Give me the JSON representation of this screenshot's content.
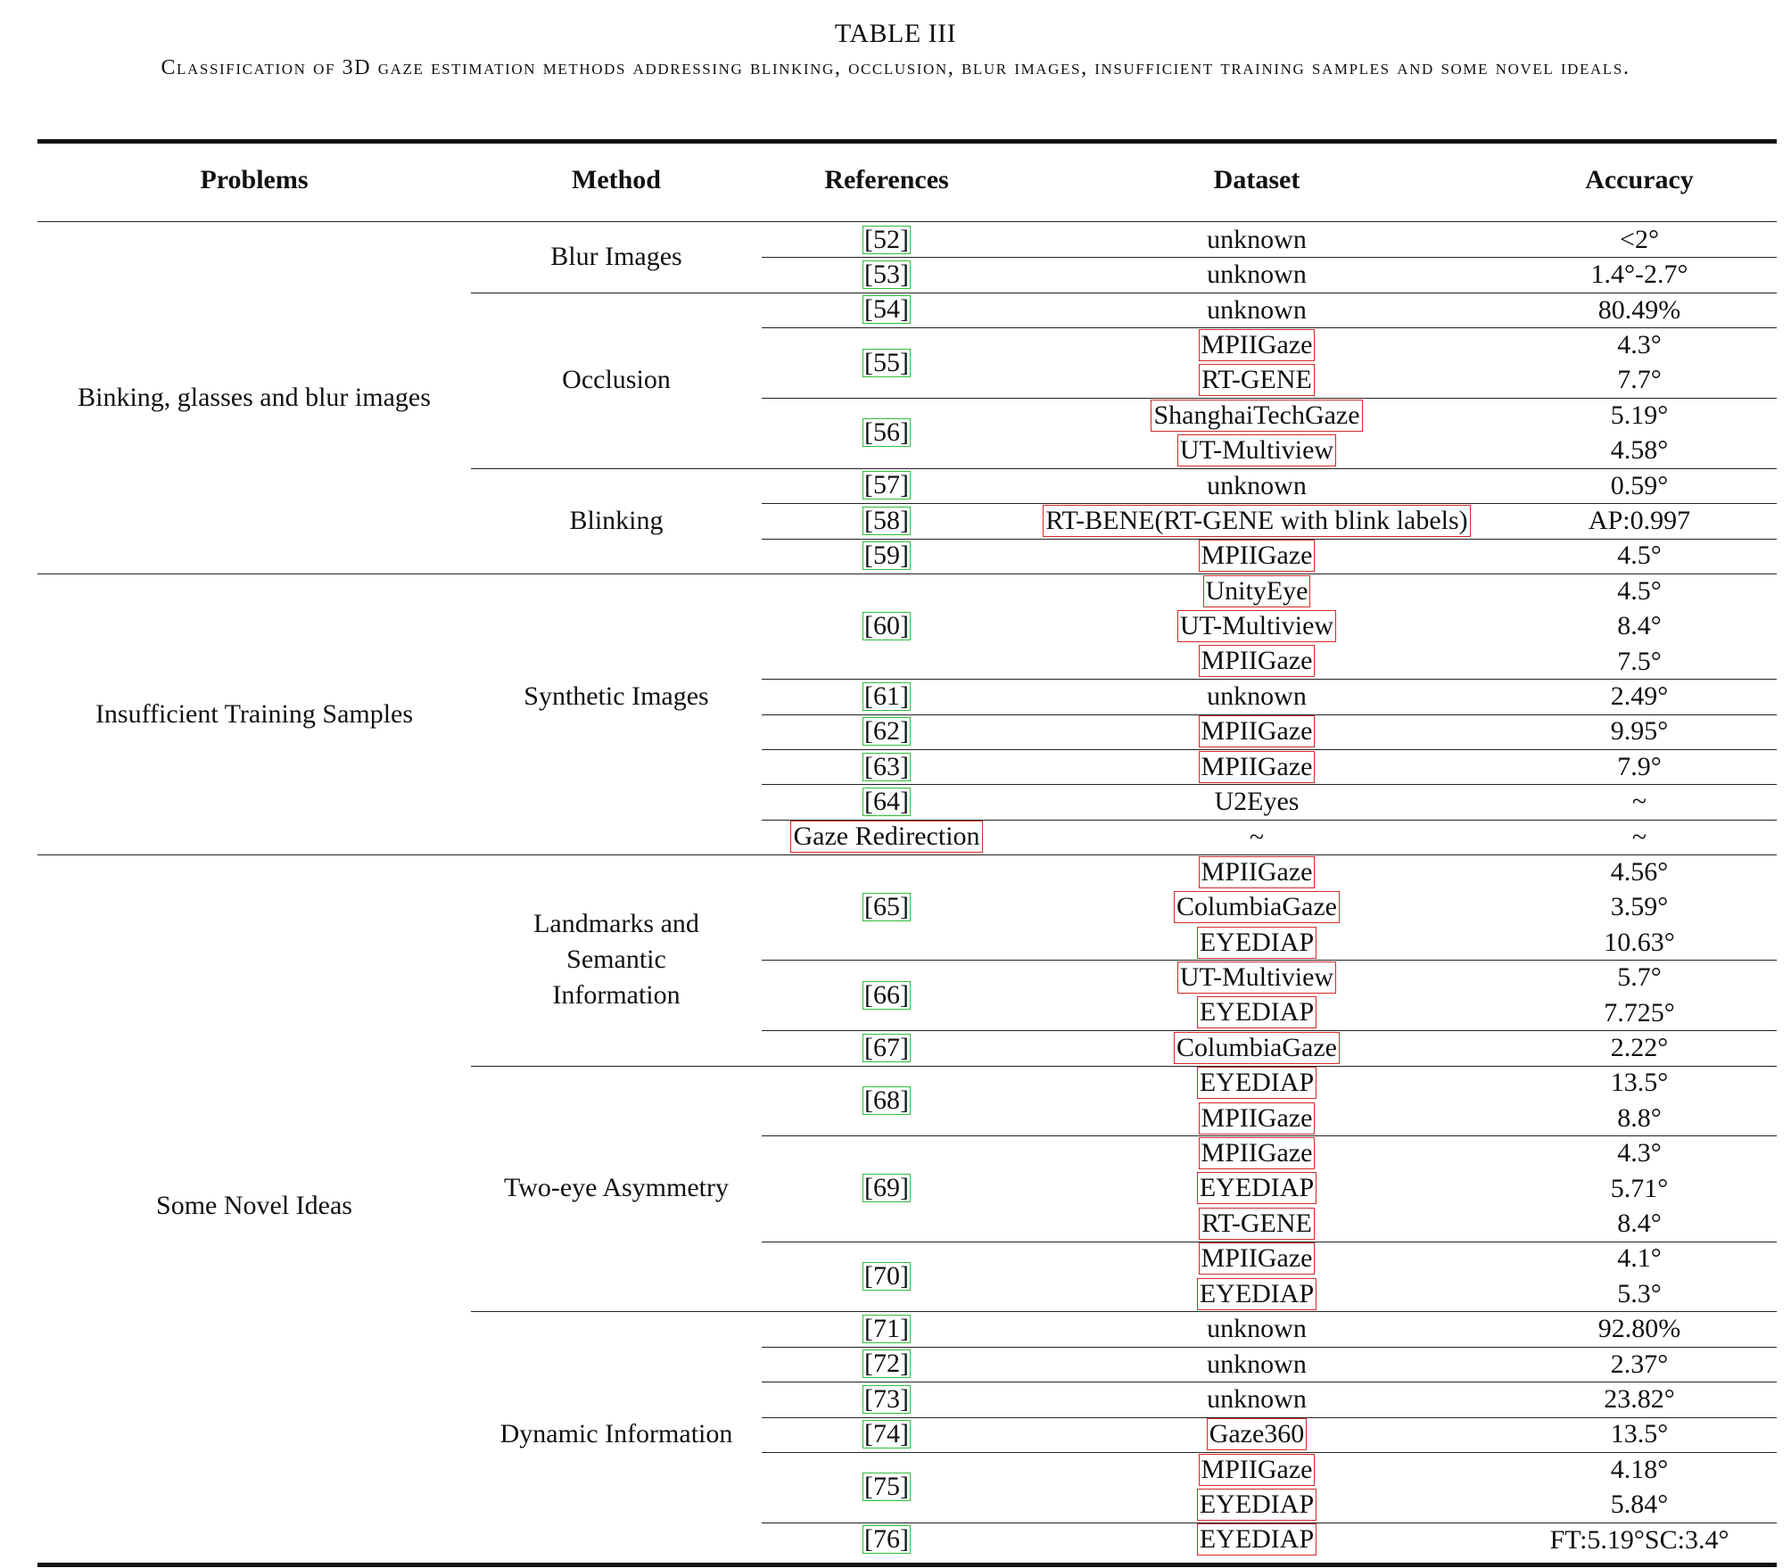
{
  "caption": {
    "title": "TABLE III",
    "description": "Classification of 3D gaze estimation methods addressing blinking, occlusion, blur images, insufficient training samples and some novel ideals."
  },
  "header": {
    "problems": "Problems",
    "method": "Method",
    "references": "References",
    "dataset": "Dataset",
    "accuracy": "Accuracy"
  },
  "problems": [
    "Binking, glasses and blur images",
    "Insufficient Training Samples",
    "Some Novel Ideas"
  ],
  "methods": [
    "Blur Images",
    "Occlusion",
    "Blinking",
    "Synthetic Images",
    "Landmarks and Semantic Information",
    "Two-eye Asymmetry",
    "Dynamic Information"
  ],
  "rows": [
    {
      "ref": "52",
      "dataset": "unknown",
      "accuracy": "<2°"
    },
    {
      "ref": "53",
      "dataset": "unknown",
      "accuracy": "1.4°-2.7°"
    },
    {
      "ref": "54",
      "dataset": "unknown",
      "accuracy": "80.49%"
    },
    {
      "ref": "55",
      "dataset": "MPIIGaze",
      "accuracy": "4.3°"
    },
    {
      "ref": "",
      "dataset": "RT-GENE",
      "accuracy": "7.7°"
    },
    {
      "ref": "56",
      "dataset": "ShanghaiTechGaze",
      "accuracy": "5.19°"
    },
    {
      "ref": "",
      "dataset": "UT-Multiview",
      "accuracy": "4.58°"
    },
    {
      "ref": "57",
      "dataset": "unknown",
      "accuracy": "0.59°"
    },
    {
      "ref": "58",
      "dataset": "RT-BENE(RT-GENE with blink labels)",
      "accuracy": "AP:0.997"
    },
    {
      "ref": "59",
      "dataset": "MPIIGaze",
      "accuracy": "4.5°"
    },
    {
      "ref": "60",
      "dataset": "UnityEye",
      "accuracy": "4.5°"
    },
    {
      "ref": "",
      "dataset": "UT-Multiview",
      "accuracy": "8.4°"
    },
    {
      "ref": "",
      "dataset": "MPIIGaze",
      "accuracy": "7.5°"
    },
    {
      "ref": "61",
      "dataset": "unknown",
      "accuracy": "2.49°"
    },
    {
      "ref": "62",
      "dataset": "MPIIGaze",
      "accuracy": "9.95°"
    },
    {
      "ref": "63",
      "dataset": "MPIIGaze",
      "accuracy": "7.9°"
    },
    {
      "ref": "64",
      "dataset": "U2Eyes",
      "accuracy": "~"
    },
    {
      "ref": "Gaze Redirection",
      "dataset": "~",
      "accuracy": "~"
    },
    {
      "ref": "65",
      "dataset": "MPIIGaze",
      "accuracy": "4.56°"
    },
    {
      "ref": "",
      "dataset": "ColumbiaGaze",
      "accuracy": "3.59°"
    },
    {
      "ref": "",
      "dataset": "EYEDIAP",
      "accuracy": "10.63°"
    },
    {
      "ref": "66",
      "dataset": "UT-Multiview",
      "accuracy": "5.7°"
    },
    {
      "ref": "",
      "dataset": "EYEDIAP",
      "accuracy": "7.725°"
    },
    {
      "ref": "67",
      "dataset": "ColumbiaGaze",
      "accuracy": "2.22°"
    },
    {
      "ref": "68",
      "dataset": "EYEDIAP",
      "accuracy": "13.5°"
    },
    {
      "ref": "",
      "dataset": "MPIIGaze",
      "accuracy": "8.8°"
    },
    {
      "ref": "69",
      "dataset": "MPIIGaze",
      "accuracy": "4.3°"
    },
    {
      "ref": "",
      "dataset": "EYEDIAP",
      "accuracy": "5.71°"
    },
    {
      "ref": "",
      "dataset": "RT-GENE",
      "accuracy": "8.4°"
    },
    {
      "ref": "70",
      "dataset": "MPIIGaze",
      "accuracy": "4.1°"
    },
    {
      "ref": "",
      "dataset": "EYEDIAP",
      "accuracy": "5.3°"
    },
    {
      "ref": "71",
      "dataset": "unknown",
      "accuracy": "92.80%"
    },
    {
      "ref": "72",
      "dataset": "unknown",
      "accuracy": "2.37°"
    },
    {
      "ref": "73",
      "dataset": "unknown",
      "accuracy": "23.82°"
    },
    {
      "ref": "74",
      "dataset": "Gaze360",
      "accuracy": "13.5°"
    },
    {
      "ref": "75",
      "dataset": "MPIIGaze",
      "accuracy": "4.18°"
    },
    {
      "ref": "",
      "dataset": "EYEDIAP",
      "accuracy": "5.84°"
    },
    {
      "ref": "76",
      "dataset": "EYEDIAP",
      "accuracy": "FT:5.19°SC:3.4°"
    }
  ]
}
